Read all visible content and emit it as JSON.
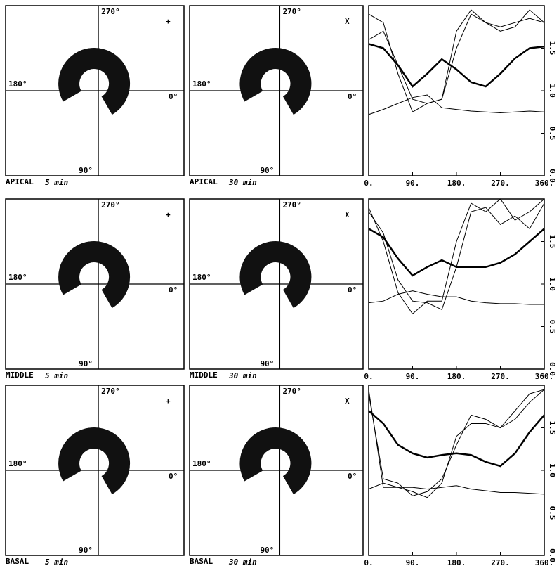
{
  "panels": [
    {
      "region": "APICAL",
      "time": "5 min",
      "marker": "+",
      "angles": [
        "270°",
        "180°",
        "0°",
        "90°"
      ]
    },
    {
      "region": "APICAL",
      "time": "30 min",
      "marker": "X",
      "angles": [
        "270°",
        "180°",
        "0°",
        "90°"
      ]
    },
    {
      "region": "MIDDLE",
      "time": "5 min",
      "marker": "+",
      "angles": [
        "270°",
        "180°",
        "0°",
        "90°"
      ]
    },
    {
      "region": "MIDDLE",
      "time": "30 min",
      "marker": "X",
      "angles": [
        "270°",
        "180°",
        "0°",
        "90°"
      ]
    },
    {
      "region": "BASAL",
      "time": "5 min",
      "marker": "+",
      "angles": [
        "270°",
        "180°",
        "0°",
        "90°"
      ]
    },
    {
      "region": "BASAL",
      "time": "30 min",
      "marker": "X",
      "angles": [
        "270°",
        "180°",
        "0°",
        "90°"
      ]
    }
  ],
  "chart_data": [
    {
      "type": "line",
      "x": [
        0,
        30,
        60,
        90,
        120,
        150,
        180,
        210,
        240,
        270,
        300,
        330,
        360
      ],
      "xlim": [
        0,
        360
      ],
      "ylim": [
        0,
        2
      ],
      "xticks": [
        {
          "value": 0,
          "label": "0."
        },
        {
          "value": 90,
          "label": "90."
        },
        {
          "value": 180,
          "label": "180."
        },
        {
          "value": 270,
          "label": "270."
        },
        {
          "value": 360,
          "label": "360."
        }
      ],
      "yticks": [
        {
          "value": 0,
          "label": "0.0"
        },
        {
          "value": 0.5,
          "label": "0.5"
        },
        {
          "value": 1,
          "label": "1.0"
        },
        {
          "value": 1.5,
          "label": "1.5"
        }
      ],
      "series": [
        {
          "color": "#000000",
          "width": 2.5,
          "values": [
            1.55,
            1.5,
            1.3,
            1.05,
            1.2,
            1.37,
            1.25,
            1.1,
            1.05,
            1.2,
            1.38,
            1.5,
            1.52
          ]
        },
        {
          "color": "#000000",
          "width": 1,
          "values": [
            0.72,
            0.78,
            0.85,
            0.92,
            0.95,
            0.8,
            0.78,
            0.76,
            0.75,
            0.74,
            0.75,
            0.76,
            0.75
          ]
        },
        {
          "color": "#000000",
          "width": 1,
          "values": [
            1.6,
            1.7,
            1.3,
            0.9,
            0.85,
            0.9,
            1.5,
            1.9,
            1.8,
            1.75,
            1.8,
            1.85,
            1.8
          ]
        },
        {
          "color": "#000000",
          "width": 1,
          "values": [
            1.9,
            1.8,
            1.2,
            0.75,
            0.85,
            0.9,
            1.7,
            1.95,
            1.8,
            1.7,
            1.75,
            1.95,
            1.8
          ]
        }
      ]
    },
    {
      "type": "line",
      "x": [
        0,
        30,
        60,
        90,
        120,
        150,
        180,
        210,
        240,
        270,
        300,
        330,
        360
      ],
      "xlim": [
        0,
        360
      ],
      "ylim": [
        0,
        2
      ],
      "xticks": [
        {
          "value": 0,
          "label": "0."
        },
        {
          "value": 90,
          "label": "90."
        },
        {
          "value": 180,
          "label": "180."
        },
        {
          "value": 270,
          "label": "270."
        },
        {
          "value": 360,
          "label": "360."
        }
      ],
      "yticks": [
        {
          "value": 0,
          "label": "0.0"
        },
        {
          "value": 0.5,
          "label": "0.5"
        },
        {
          "value": 1,
          "label": "1.0"
        },
        {
          "value": 1.5,
          "label": "1.5"
        }
      ],
      "series": [
        {
          "color": "#000000",
          "width": 2.5,
          "values": [
            1.65,
            1.55,
            1.3,
            1.1,
            1.2,
            1.28,
            1.2,
            1.2,
            1.2,
            1.25,
            1.35,
            1.5,
            1.65
          ]
        },
        {
          "color": "#000000",
          "width": 1,
          "values": [
            0.78,
            0.8,
            0.88,
            0.92,
            0.88,
            0.85,
            0.85,
            0.8,
            0.78,
            0.77,
            0.77,
            0.76,
            0.76
          ]
        },
        {
          "color": "#000000",
          "width": 1,
          "values": [
            1.85,
            1.6,
            1.05,
            0.8,
            0.78,
            0.7,
            1.2,
            1.85,
            1.9,
            1.7,
            1.8,
            1.65,
            1.95
          ]
        },
        {
          "color": "#000000",
          "width": 1,
          "values": [
            1.9,
            1.5,
            0.9,
            0.65,
            0.8,
            0.8,
            1.5,
            1.95,
            1.85,
            2.0,
            1.75,
            1.85,
            2.0
          ]
        }
      ]
    },
    {
      "type": "line",
      "x": [
        0,
        30,
        60,
        90,
        120,
        150,
        180,
        210,
        240,
        270,
        300,
        330,
        360
      ],
      "xlim": [
        0,
        360
      ],
      "ylim": [
        0,
        2
      ],
      "xticks": [
        {
          "value": 0,
          "label": "0."
        },
        {
          "value": 90,
          "label": "90."
        },
        {
          "value": 180,
          "label": "180."
        },
        {
          "value": 270,
          "label": "270."
        },
        {
          "value": 360,
          "label": "360."
        }
      ],
      "yticks": [
        {
          "value": 0,
          "label": "0.0"
        },
        {
          "value": 0.5,
          "label": "0.5"
        },
        {
          "value": 1,
          "label": "1.0"
        },
        {
          "value": 1.5,
          "label": "1.5"
        }
      ],
      "series": [
        {
          "color": "#000000",
          "width": 2.5,
          "values": [
            1.7,
            1.55,
            1.3,
            1.2,
            1.15,
            1.18,
            1.2,
            1.18,
            1.1,
            1.05,
            1.2,
            1.45,
            1.65
          ]
        },
        {
          "color": "#000000",
          "width": 1,
          "values": [
            0.78,
            0.85,
            0.8,
            0.8,
            0.78,
            0.8,
            0.82,
            0.78,
            0.76,
            0.74,
            0.74,
            0.73,
            0.72
          ]
        },
        {
          "color": "#000000",
          "width": 1,
          "values": [
            1.95,
            0.8,
            0.8,
            0.75,
            0.68,
            0.85,
            1.4,
            1.55,
            1.55,
            1.5,
            1.6,
            1.8,
            1.95
          ]
        },
        {
          "color": "#000000",
          "width": 1,
          "values": [
            1.9,
            0.9,
            0.85,
            0.7,
            0.75,
            0.9,
            1.3,
            1.65,
            1.6,
            1.5,
            1.7,
            1.9,
            1.95
          ]
        }
      ]
    }
  ]
}
